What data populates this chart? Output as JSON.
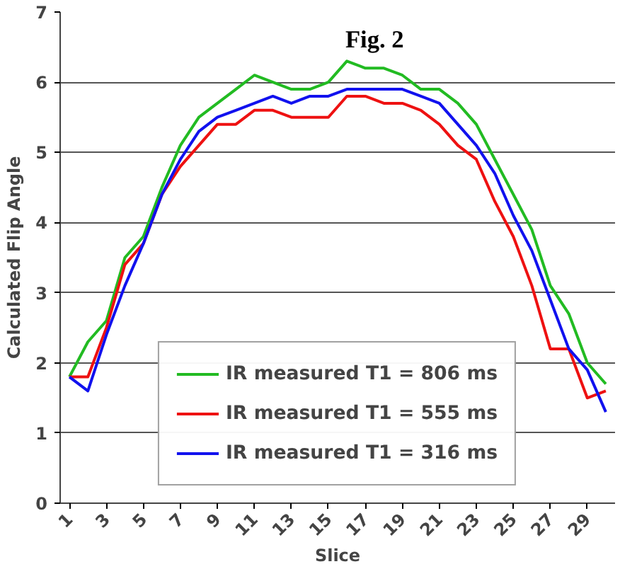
{
  "chart_data": {
    "type": "line",
    "title": "Fig. 2",
    "xlabel": "Slice",
    "ylabel": "Calculated Flip Angle",
    "x": [
      1,
      2,
      3,
      4,
      5,
      6,
      7,
      8,
      9,
      10,
      11,
      12,
      13,
      14,
      15,
      16,
      17,
      18,
      19,
      20,
      21,
      22,
      23,
      24,
      25,
      26,
      27,
      28,
      29,
      30
    ],
    "series": [
      {
        "name": "IR measured T1 = 806 ms",
        "color": "#22bb22",
        "values": [
          1.8,
          2.3,
          2.6,
          3.5,
          3.8,
          4.5,
          5.1,
          5.5,
          5.7,
          5.9,
          6.1,
          6.0,
          5.9,
          5.9,
          6.0,
          6.3,
          6.2,
          6.2,
          6.1,
          5.9,
          5.9,
          5.7,
          5.4,
          4.9,
          4.4,
          3.9,
          3.1,
          2.7,
          2.0,
          1.7
        ]
      },
      {
        "name": "IR measured T1 = 555 ms",
        "color": "#ee1111",
        "values": [
          1.8,
          1.8,
          2.5,
          3.4,
          3.7,
          4.4,
          4.8,
          5.1,
          5.4,
          5.4,
          5.6,
          5.6,
          5.5,
          5.5,
          5.5,
          5.8,
          5.8,
          5.7,
          5.7,
          5.6,
          5.4,
          5.1,
          4.9,
          4.3,
          3.8,
          3.1,
          2.2,
          2.2,
          1.5,
          1.6
        ]
      },
      {
        "name": "IR measured T1 = 316 ms",
        "color": "#1111ee",
        "values": [
          1.8,
          1.6,
          2.4,
          3.1,
          3.7,
          4.4,
          4.9,
          5.3,
          5.5,
          5.6,
          5.7,
          5.8,
          5.7,
          5.8,
          5.8,
          5.9,
          5.9,
          5.9,
          5.9,
          5.8,
          5.7,
          5.4,
          5.1,
          4.7,
          4.1,
          3.6,
          2.9,
          2.2,
          1.9,
          1.3
        ]
      }
    ],
    "xlim": [
      0.5,
      30.5
    ],
    "xticks": [
      1,
      3,
      5,
      7,
      9,
      11,
      13,
      15,
      17,
      19,
      21,
      23,
      25,
      27,
      29
    ],
    "ylim": [
      0,
      7
    ],
    "yticks": [
      0,
      1,
      2,
      3,
      4,
      5,
      6,
      7
    ],
    "grid": "y",
    "legend": "bottom",
    "marker": "none",
    "line_style": "solid"
  }
}
